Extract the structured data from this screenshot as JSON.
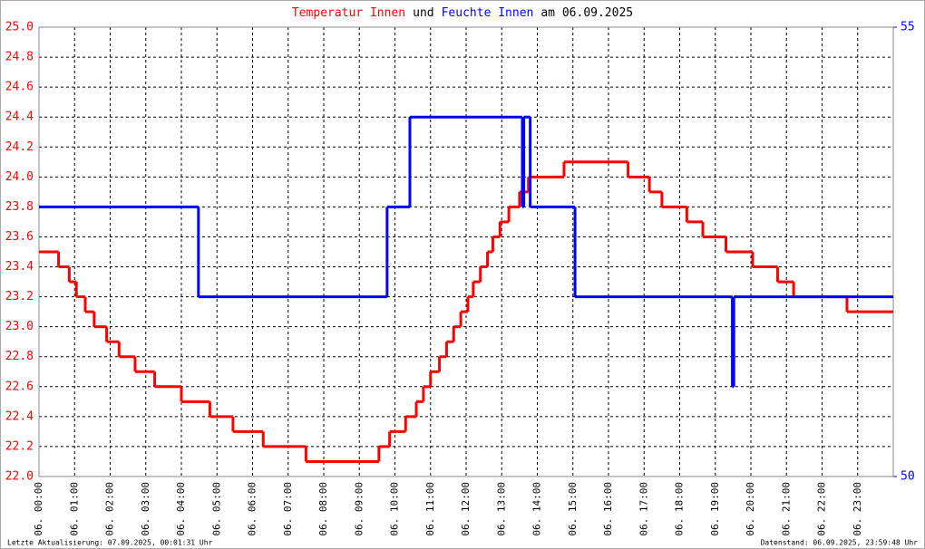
{
  "chart_data": {
    "type": "step",
    "title_parts": [
      "Temperatur Innen",
      "und",
      "Feuchte Innen",
      "am 06.09.2025"
    ],
    "title_colors": [
      "#ff0000",
      "#000000",
      "#0000ff",
      "#000000"
    ],
    "xlim": [
      0,
      24
    ],
    "xticks": [
      {
        "value": 0,
        "label": "06. 00:00"
      },
      {
        "value": 1,
        "label": "06. 01:00"
      },
      {
        "value": 2,
        "label": "06. 02:00"
      },
      {
        "value": 3,
        "label": "06. 03:00"
      },
      {
        "value": 4,
        "label": "06. 04:00"
      },
      {
        "value": 5,
        "label": "06. 05:00"
      },
      {
        "value": 6,
        "label": "06. 06:00"
      },
      {
        "value": 7,
        "label": "06. 07:00"
      },
      {
        "value": 8,
        "label": "06. 08:00"
      },
      {
        "value": 9,
        "label": "06. 09:00"
      },
      {
        "value": 10,
        "label": "06. 10:00"
      },
      {
        "value": 11,
        "label": "06. 11:00"
      },
      {
        "value": 12,
        "label": "06. 12:00"
      },
      {
        "value": 13,
        "label": "06. 13:00"
      },
      {
        "value": 14,
        "label": "06. 14:00"
      },
      {
        "value": 15,
        "label": "06. 15:00"
      },
      {
        "value": 16,
        "label": "06. 16:00"
      },
      {
        "value": 17,
        "label": "06. 17:00"
      },
      {
        "value": 18,
        "label": "06. 18:00"
      },
      {
        "value": 19,
        "label": "06. 19:00"
      },
      {
        "value": 20,
        "label": "06. 20:00"
      },
      {
        "value": 21,
        "label": "06. 21:00"
      },
      {
        "value": 22,
        "label": "06. 22:00"
      },
      {
        "value": 23,
        "label": "06. 23:00"
      }
    ],
    "ylim": [
      22.0,
      25.0
    ],
    "yticks": [
      {
        "value": 22.0,
        "label": "22.0"
      },
      22.2,
      22.4,
      22.6,
      22.8,
      {
        "value": 23.0,
        "label": "23.0"
      },
      23.2,
      23.4,
      23.6,
      23.8,
      {
        "value": 24.0,
        "label": "24.0"
      },
      24.2,
      24.4,
      24.6,
      24.8,
      {
        "value": 25.0,
        "label": "25.0"
      }
    ],
    "y2lim": [
      50,
      55
    ],
    "y2ticks": [
      50,
      55
    ],
    "grid": true,
    "series": [
      {
        "name": "Temperatur Innen",
        "color": "#ff0000",
        "x": [
          0,
          0.55,
          0.85,
          1.05,
          1.3,
          1.55,
          1.9,
          2.25,
          2.7,
          3.25,
          4.0,
          4.8,
          5.45,
          6.3,
          7.5,
          9.55,
          9.85,
          10.3,
          10.6,
          10.8,
          11.0,
          11.25,
          11.45,
          11.65,
          11.85,
          12.05,
          12.2,
          12.4,
          12.6,
          12.75,
          12.95,
          13.2,
          13.5,
          13.75,
          14.75,
          16.55,
          17.15,
          17.5,
          18.2,
          18.65,
          19.3,
          20.05,
          20.75,
          21.2,
          22.7,
          24
        ],
        "values": [
          23.5,
          23.4,
          23.3,
          23.2,
          23.1,
          23.0,
          22.9,
          22.8,
          22.7,
          22.6,
          22.5,
          22.4,
          22.3,
          22.2,
          22.1,
          22.2,
          22.3,
          22.4,
          22.5,
          22.6,
          22.7,
          22.8,
          22.9,
          23.0,
          23.1,
          23.2,
          23.3,
          23.4,
          23.5,
          23.6,
          23.7,
          23.8,
          23.9,
          24.0,
          24.1,
          24.0,
          23.9,
          23.8,
          23.7,
          23.6,
          23.5,
          23.4,
          23.3,
          23.2,
          23.1,
          23.1
        ]
      },
      {
        "name": "Feuchte Innen",
        "color": "#0000ff",
        "axis": "y2",
        "x": [
          0,
          4.48,
          9.78,
          10.42,
          13.58,
          13.62,
          13.8,
          15.06,
          19.48,
          19.52,
          24
        ],
        "values": [
          53,
          52,
          53,
          54,
          53,
          54,
          53,
          52,
          51,
          52,
          52
        ]
      }
    ],
    "footer_left": "Letzte Aktualisierung: 07.09.2025, 00:01:31 Uhr",
    "footer_right": "Datenstand: 06.09.2025, 23:59:48 Uhr"
  }
}
